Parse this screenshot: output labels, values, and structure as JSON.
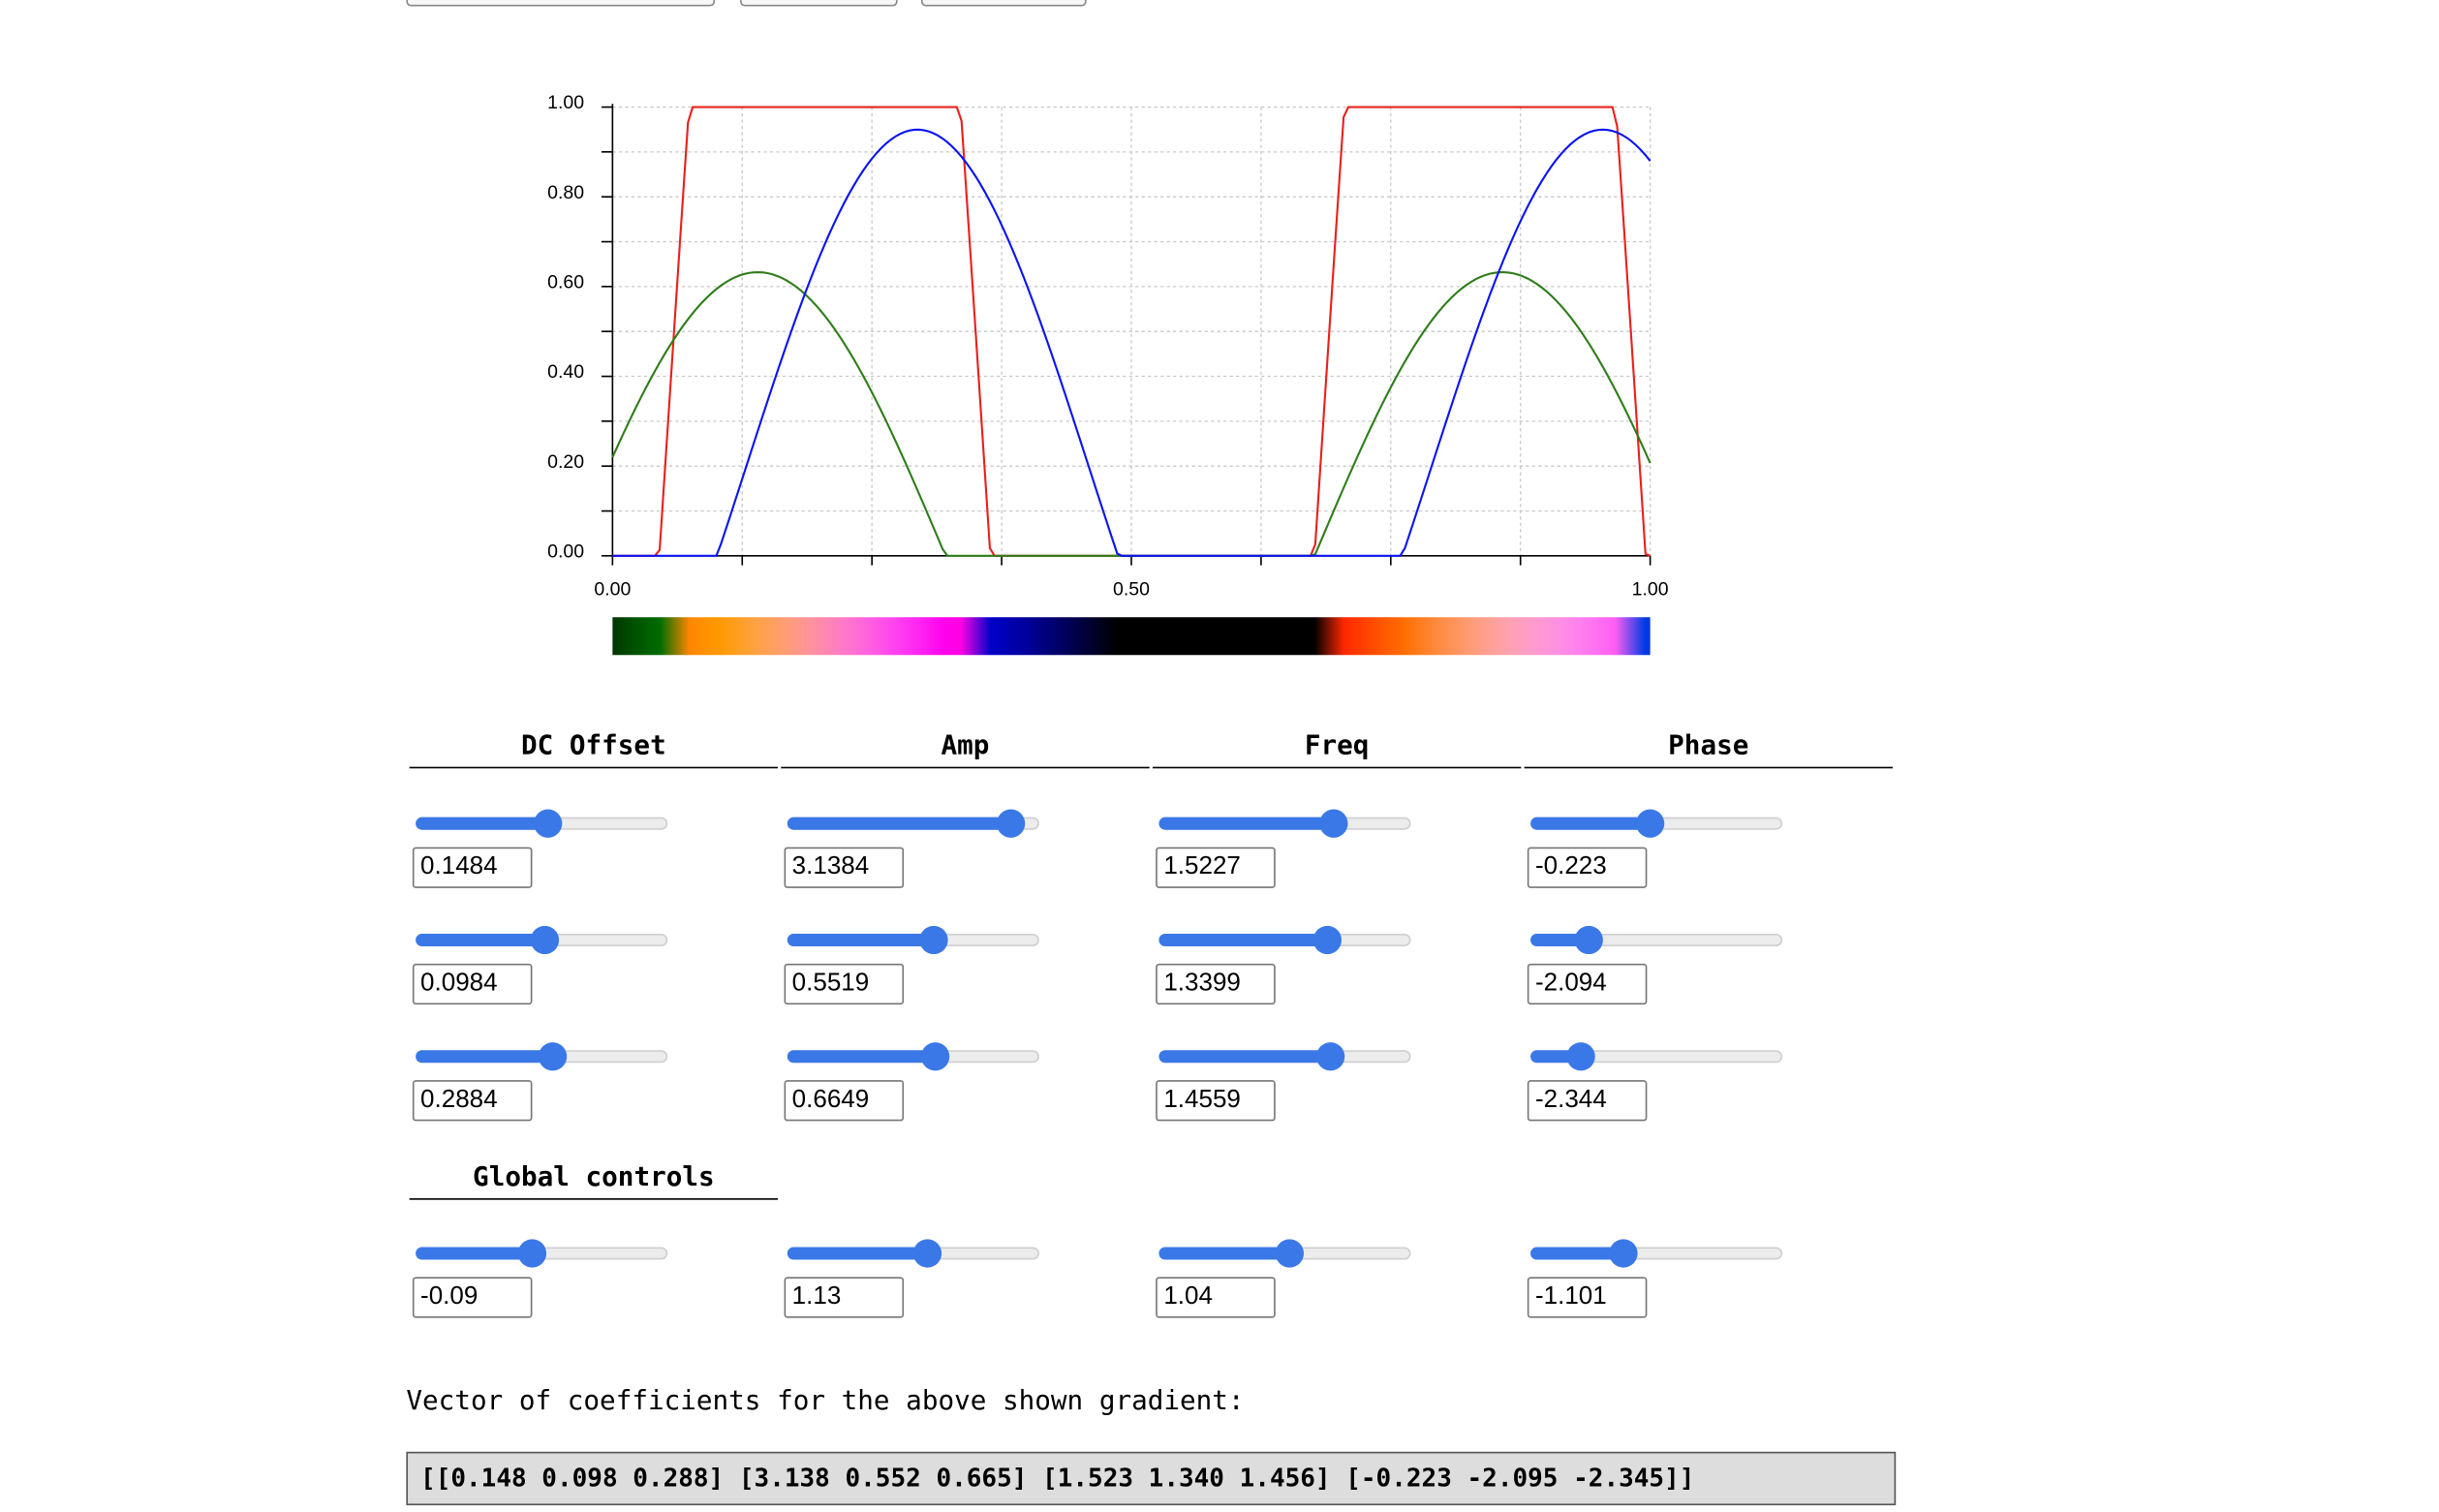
{
  "chart_data": {
    "type": "line",
    "x_range": [
      0,
      1
    ],
    "ylim": [
      0,
      1
    ],
    "x_ticks": [
      "0.00",
      "0.50",
      "1.00"
    ],
    "y_ticks": [
      "0.00",
      "0.20",
      "0.40",
      "0.60",
      "0.80",
      "1.00"
    ],
    "grid": true,
    "clamped": true,
    "series": [
      {
        "color": "#e8201c",
        "dc": 0.1484,
        "amp": 3.1384,
        "freq": 1.5227,
        "phase": -0.223
      },
      {
        "color": "#2e7d1a",
        "dc": 0.0984,
        "amp": 0.5519,
        "freq": 1.3399,
        "phase": -2.094
      },
      {
        "color": "#0a14f0",
        "dc": 0.2884,
        "amp": 0.6649,
        "freq": 1.4559,
        "phase": -2.344
      }
    ],
    "global": {
      "dc": -0.09,
      "amp": 1.13,
      "freq": 1.04,
      "phase": -1.101
    }
  },
  "controls": {
    "headers": [
      "DC Offset",
      "Amp",
      "Freq",
      "Phase"
    ],
    "global_header": "Global controls",
    "rows": [
      {
        "values": [
          "0.1484",
          "3.1384",
          "1.5227",
          "-0.223"
        ],
        "levels": [
          0.53,
          0.94,
          0.715,
          0.47
        ]
      },
      {
        "values": [
          "0.0984",
          "0.5519",
          "1.3399",
          "-2.094"
        ],
        "levels": [
          0.515,
          0.59,
          0.69,
          0.2
        ]
      },
      {
        "values": [
          "0.2884",
          "0.6649",
          "1.4559",
          "-2.344"
        ],
        "levels": [
          0.55,
          0.6,
          0.705,
          0.16
        ]
      }
    ],
    "global": {
      "values": [
        "-0.09",
        "1.13",
        "1.04",
        "-1.101"
      ],
      "levels": [
        0.46,
        0.565,
        0.52,
        0.35
      ]
    }
  },
  "caption": "Vector of coefficients for the above shown gradient:",
  "coefficients": "[[0.148 0.098 0.288] [3.138 0.552 0.665] [1.523 1.340 1.456] [-0.223 -2.095 -2.345]]"
}
